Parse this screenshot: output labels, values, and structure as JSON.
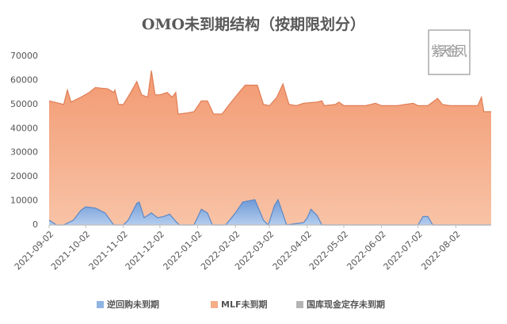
{
  "chart_data": {
    "type": "area",
    "title": "OMO未到期结构（按期限划分）",
    "watermark": "紫天金凤",
    "xlim": [
      "2021-09-02",
      "2022-08-31"
    ],
    "xticks": [
      "2021-09-02",
      "2021-10-02",
      "2021-11-02",
      "2021-12-02",
      "2022-01-02",
      "2022-02-02",
      "2022-03-02",
      "2022-04-02",
      "2022-05-02",
      "2022-06-02",
      "2022-07-02",
      "2022-08-02"
    ],
    "ylim": [
      0,
      70000
    ],
    "yticks": [
      0,
      10000,
      20000,
      30000,
      40000,
      50000,
      60000,
      70000
    ],
    "legend": "bottom",
    "series": [
      {
        "name": "MLF未到期",
        "color": "#f5ad88",
        "x": [
          "2021-09-02",
          "2021-09-10",
          "2021-09-14",
          "2021-09-17",
          "2021-09-20",
          "2021-09-28",
          "2021-10-05",
          "2021-10-10",
          "2021-10-20",
          "2021-10-25",
          "2021-10-26",
          "2021-10-29",
          "2021-11-02",
          "2021-11-08",
          "2021-11-13",
          "2021-11-17",
          "2021-11-22",
          "2021-11-25",
          "2021-11-28",
          "2021-12-02",
          "2021-12-08",
          "2021-12-12",
          "2021-12-15",
          "2021-12-17",
          "2021-12-25",
          "2021-12-30",
          "2022-01-05",
          "2022-01-10",
          "2022-01-15",
          "2022-01-22",
          "2022-01-28",
          "2022-02-05",
          "2022-02-10",
          "2022-02-20",
          "2022-02-25",
          "2022-03-02",
          "2022-03-08",
          "2022-03-13",
          "2022-03-18",
          "2022-03-24",
          "2022-03-30",
          "2022-04-10",
          "2022-04-14",
          "2022-04-16",
          "2022-04-25",
          "2022-04-28",
          "2022-05-02",
          "2022-05-20",
          "2022-05-28",
          "2022-06-02",
          "2022-06-15",
          "2022-06-28",
          "2022-07-02",
          "2022-07-10",
          "2022-07-18",
          "2022-07-22",
          "2022-07-28",
          "2022-08-10",
          "2022-08-20",
          "2022-08-23",
          "2022-08-25",
          "2022-08-31"
        ],
        "values": [
          51500,
          50500,
          50000,
          56000,
          51000,
          53000,
          55000,
          57000,
          56500,
          55000,
          56000,
          50000,
          50000,
          55000,
          59500,
          54000,
          53000,
          64000,
          54000,
          54000,
          55000,
          53000,
          55000,
          46000,
          46500,
          47000,
          51500,
          51500,
          46000,
          46000,
          50000,
          55000,
          58000,
          58000,
          50000,
          49500,
          53000,
          58500,
          50000,
          49500,
          50500,
          51000,
          51500,
          49500,
          50000,
          51000,
          49500,
          49500,
          50500,
          49500,
          49500,
          50500,
          49500,
          49500,
          52500,
          50000,
          49500,
          49500,
          49500,
          53000,
          47000,
          47000
        ]
      },
      {
        "name": "逆回购未到期",
        "color": "#8fb4e3",
        "x": [
          "2021-09-02",
          "2021-09-08",
          "2021-09-14",
          "2021-09-22",
          "2021-09-28",
          "2021-10-02",
          "2021-10-10",
          "2021-10-18",
          "2021-10-25",
          "2021-11-02",
          "2021-11-06",
          "2021-11-13",
          "2021-11-15",
          "2021-11-19",
          "2021-11-25",
          "2021-11-30",
          "2021-12-05",
          "2021-12-10",
          "2021-12-15",
          "2021-12-18",
          "2021-12-30",
          "2022-01-05",
          "2022-01-10",
          "2022-01-14",
          "2022-01-25",
          "2022-02-02",
          "2022-02-08",
          "2022-02-18",
          "2022-02-25",
          "2022-03-01",
          "2022-03-06",
          "2022-03-09",
          "2022-03-12",
          "2022-03-16",
          "2022-03-30",
          "2022-04-02",
          "2022-04-05",
          "2022-04-10",
          "2022-04-14",
          "2022-07-02",
          "2022-07-06",
          "2022-07-10",
          "2022-07-14",
          "2022-08-31"
        ],
        "values": [
          2000,
          0,
          0,
          2000,
          6000,
          7500,
          7000,
          5000,
          0,
          0,
          2000,
          9000,
          9500,
          3000,
          5000,
          3000,
          3500,
          4500,
          1500,
          0,
          0,
          6500,
          5000,
          0,
          0,
          5000,
          9500,
          10500,
          2000,
          0,
          8000,
          10500,
          6000,
          0,
          1000,
          3000,
          6500,
          4000,
          0,
          0,
          3500,
          3500,
          0,
          0
        ]
      },
      {
        "name": "国库现金定存未到期",
        "color": "#b4b4b4",
        "x": [
          "2021-09-02",
          "2022-08-31"
        ],
        "values": [
          0,
          0
        ]
      }
    ]
  }
}
